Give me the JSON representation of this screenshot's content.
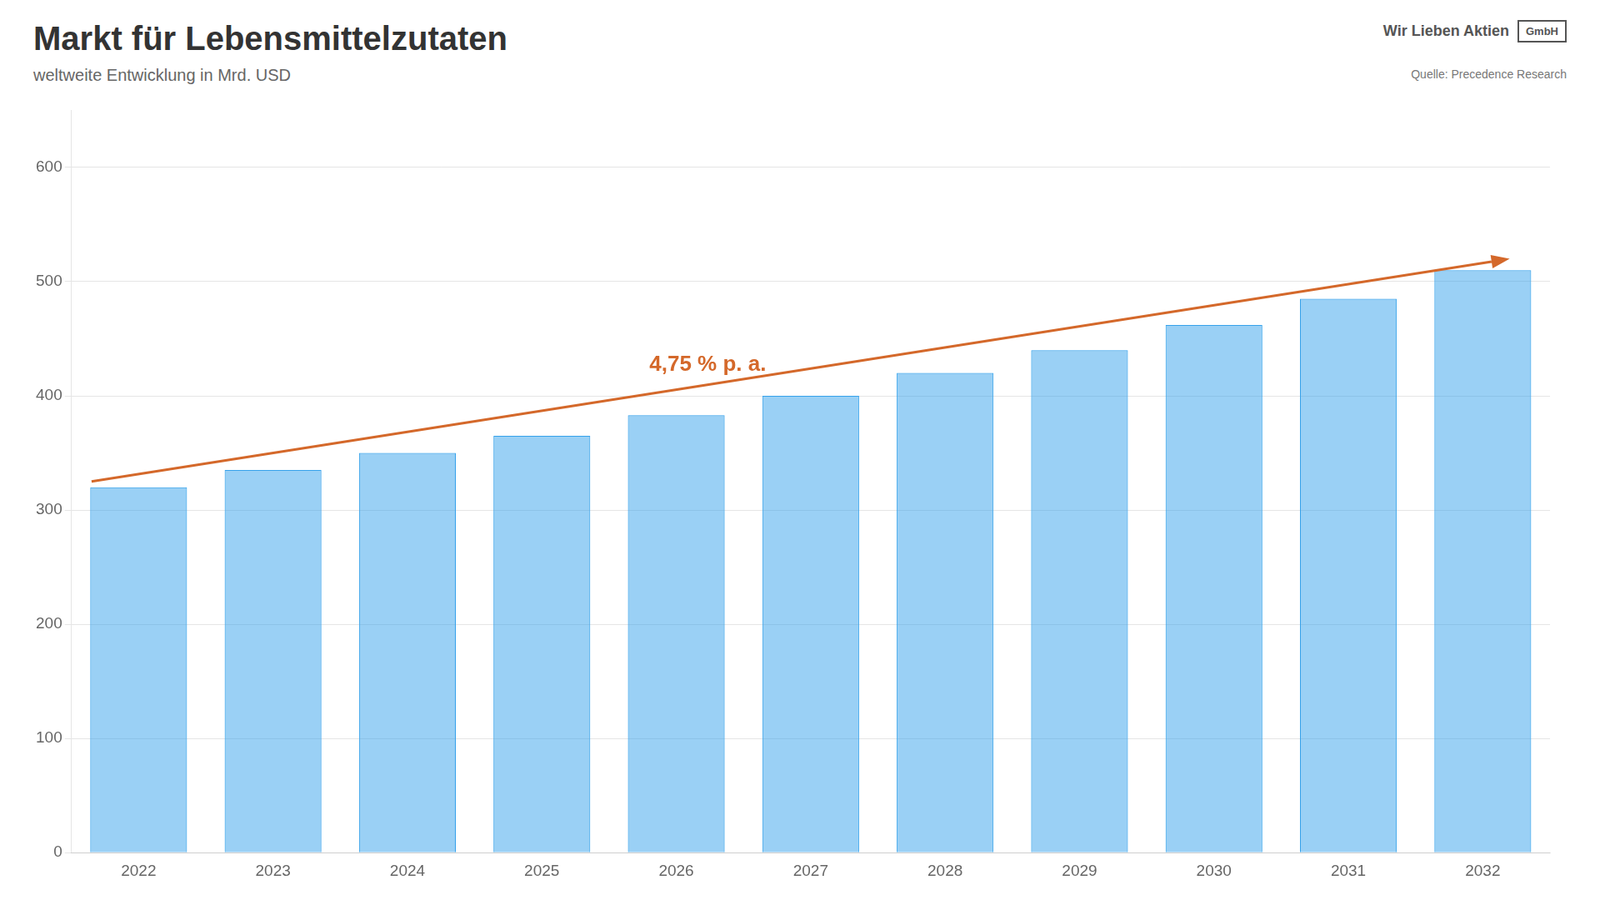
{
  "chart_data": {
    "type": "bar",
    "title": "Markt für Lebensmittelzutaten",
    "subtitle": "weltweite Entwicklung in Mrd. USD",
    "source": "Quelle: Precedence Research",
    "watermark": "Wir Lieben Aktien",
    "watermark_box": "GmbH",
    "categories": [
      "2022",
      "2023",
      "2024",
      "2025",
      "2026",
      "2027",
      "2028",
      "2029",
      "2030",
      "2031",
      "2032"
    ],
    "values": [
      320,
      335,
      350,
      365,
      383,
      400,
      420,
      440,
      462,
      485,
      510
    ],
    "trend": {
      "label": "4,75 % p. a.",
      "start": 325,
      "end": 520,
      "color": "#d4682a"
    },
    "ylim": [
      0,
      650
    ],
    "yticks": [
      0,
      100,
      200,
      300,
      400,
      500,
      600
    ],
    "grid": true
  }
}
